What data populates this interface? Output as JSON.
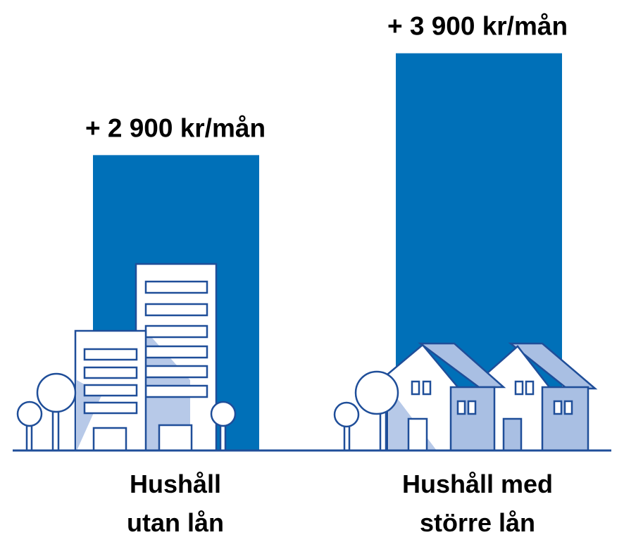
{
  "chart_data": {
    "type": "bar",
    "categories": [
      "Hushåll utan lån",
      "Hushåll med större lån"
    ],
    "values": [
      2900,
      3900
    ],
    "value_labels": [
      "+ 2 900 kr/mån",
      "+ 3 900 kr/mån"
    ],
    "color": "#0070b8"
  }
}
